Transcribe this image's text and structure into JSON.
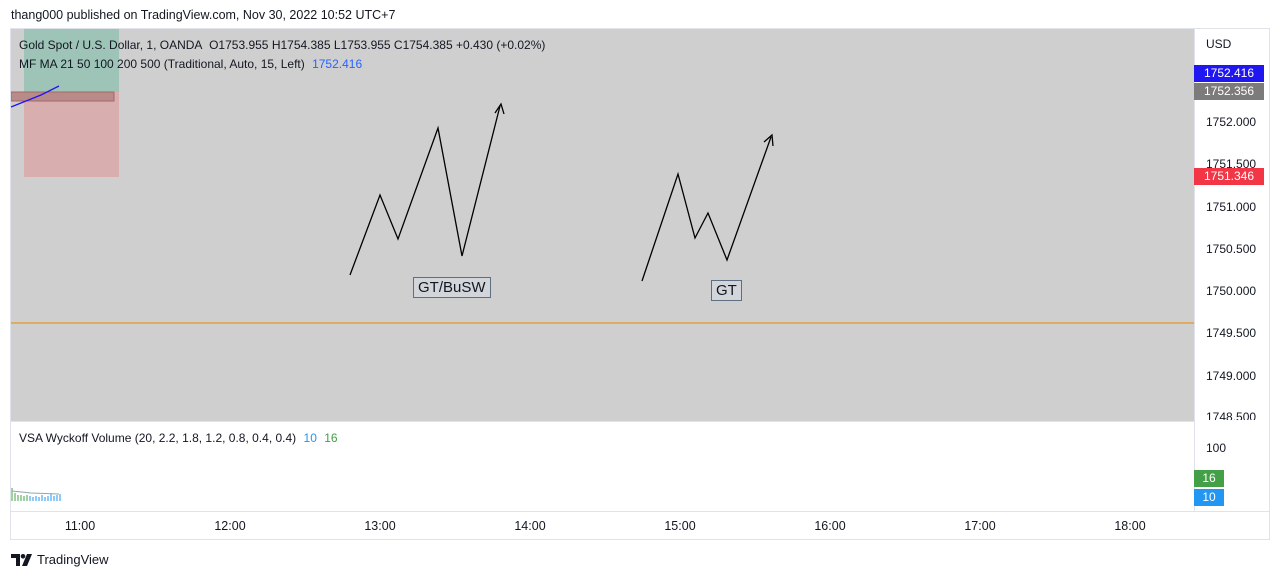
{
  "header": {
    "publisher_line": "thang000 published on TradingView.com, Nov 30, 2022 10:52 UTC+7"
  },
  "legend": {
    "symbol_line": "Gold Spot / U.S. Dollar, 1, OANDA",
    "ohlc": "O1753.955  H1754.385  L1753.955  C1754.385  +0.430 (+0.02%)",
    "ma_line": "MF MA 21 50 100 200 500 (Traditional, Auto, 15, Left)",
    "ma_value": "1752.416",
    "vsa_line": "VSA Wyckoff Volume (20, 2.2, 1.8, 1.2, 0.8, 0.4, 0.4)",
    "vsa_value1": "10",
    "vsa_value2": "16"
  },
  "price_axis": {
    "currency": "USD",
    "ticks": [
      "1752.000",
      "1751.500",
      "1751.000",
      "1750.500",
      "1750.000",
      "1749.500",
      "1749.000",
      "1748.500"
    ],
    "tags": {
      "ma": {
        "text": "1752.416",
        "color": "#2017f0"
      },
      "last": {
        "text": "1752.356",
        "color": "#7b7b7b"
      },
      "red": {
        "text": "1751.346",
        "color": "#f23645"
      }
    }
  },
  "volume_axis": {
    "tick": "100",
    "tags": {
      "green": {
        "text": "16",
        "color": "#43a047"
      },
      "blue": {
        "text": "10",
        "color": "#2196f3"
      }
    }
  },
  "time_axis": {
    "labels": [
      "11:00",
      "12:00",
      "13:00",
      "14:00",
      "15:00",
      "16:00",
      "17:00",
      "18:00"
    ]
  },
  "annotations": {
    "label1": "GT/BuSW",
    "label2": "GT"
  },
  "colors": {
    "chart_bg": "#cfcfcf",
    "horizontal_line": "#e2a03f",
    "ma_line": "#2017f0"
  },
  "footer": {
    "brand": "TradingView"
  }
}
